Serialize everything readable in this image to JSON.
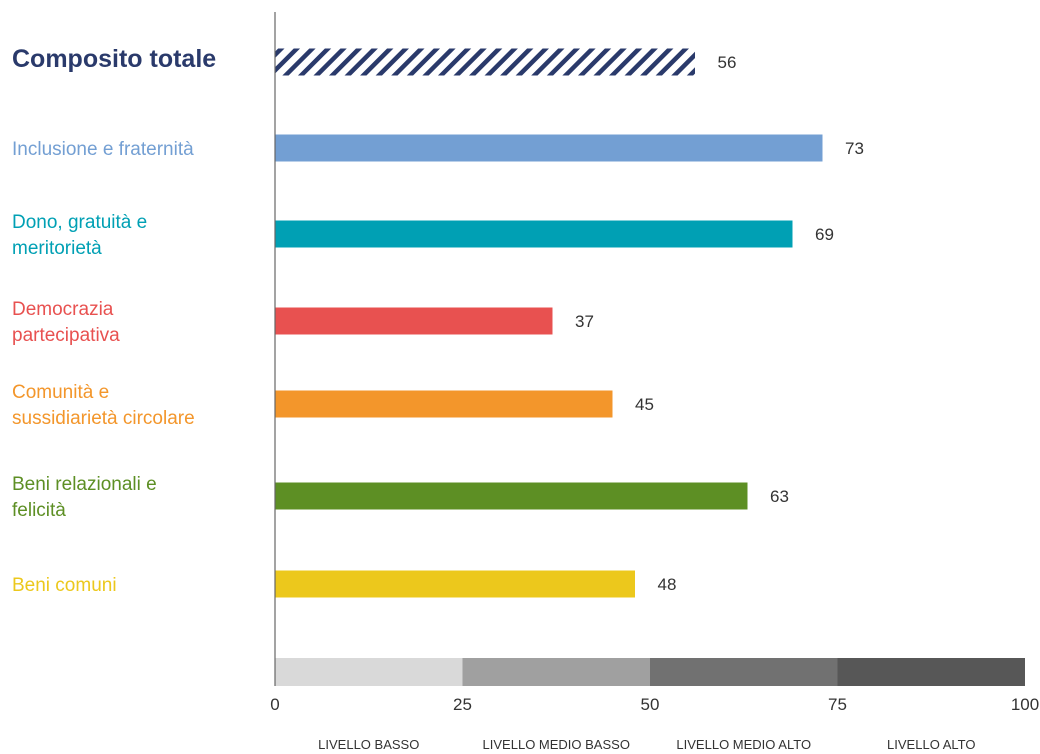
{
  "chart_data": {
    "type": "bar",
    "orientation": "horizontal",
    "categories": [
      "Composito totale",
      "Inclusione e fraternità",
      "Dono, gratuità e meritorietà",
      "Democrazia partecipativa",
      "Comunità e sussidiarietà circolare",
      "Beni relazionali e felicità",
      "Beni comuni"
    ],
    "label_lines": [
      [
        "Composito totale"
      ],
      [
        "Inclusione e fraternità"
      ],
      [
        "Dono, gratuità e",
        "meritorietà"
      ],
      [
        "Democrazia",
        "partecipativa"
      ],
      [
        "Comunità e",
        "sussidiarietà circolare"
      ],
      [
        "Beni relazionali e",
        "felicità"
      ],
      [
        "Beni comuni"
      ]
    ],
    "values": [
      56,
      73,
      69,
      37,
      45,
      63,
      48
    ],
    "colors": [
      "#2a3a6b",
      "#739fd3",
      "#00a0b4",
      "#e85150",
      "#f3962b",
      "#5d8f24",
      "#ecc81c"
    ],
    "highlight_first": true,
    "xlim": [
      0,
      100
    ],
    "xticks": [
      0,
      25,
      50,
      75,
      100
    ],
    "levels": [
      {
        "label": "LIVELLO BASSO",
        "from": 0,
        "to": 25,
        "color": "#d9d9d9"
      },
      {
        "label": "LIVELLO MEDIO BASSO",
        "from": 25,
        "to": 50,
        "color": "#a0a0a0"
      },
      {
        "label": "LIVELLO MEDIO ALTO",
        "from": 50,
        "to": 75,
        "color": "#717171"
      },
      {
        "label": "LIVELLO ALTO",
        "from": 75,
        "to": 100,
        "color": "#575757"
      }
    ]
  }
}
